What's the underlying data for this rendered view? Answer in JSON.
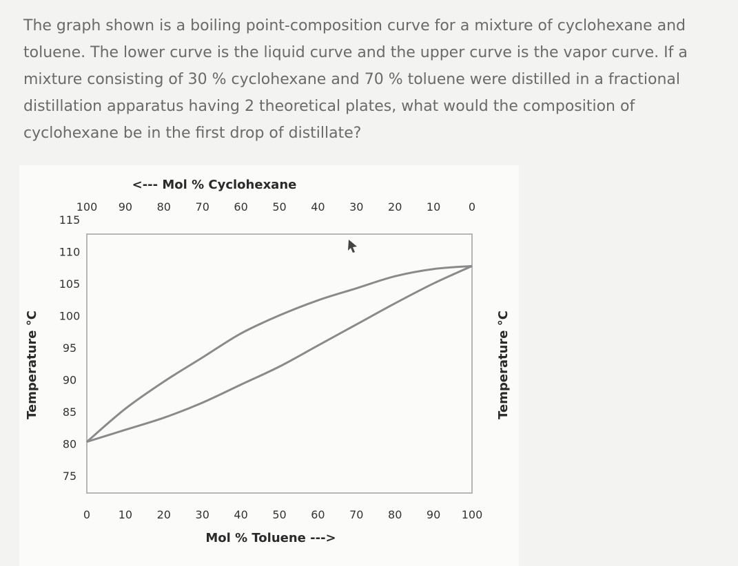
{
  "question": {
    "text": "The graph shown is a boiling point-composition curve for a mixture of cyclohexane and toluene. The lower curve is the liquid curve and the upper curve is the vapor curve. If a mixture consisting of 30 % cyclohexane and 70 % toluene were distilled in a fractional distillation apparatus having 2 theoretical plates, what would the composition of cyclohexane be in the first drop of distillate?"
  },
  "chart_data": {
    "type": "line",
    "top_xlabel": "<--- Mol % Cyclohexane",
    "xlabel": "Mol % Toluene --->",
    "ylabel_left": "Temperature °C",
    "ylabel_right": "Temperature °C",
    "top_ticks": [
      "100",
      "90",
      "80",
      "70",
      "60",
      "50",
      "40",
      "30",
      "20",
      "10",
      "0"
    ],
    "bottom_ticks": [
      "0",
      "10",
      "20",
      "30",
      "40",
      "50",
      "60",
      "70",
      "80",
      "90",
      "100"
    ],
    "y_ticks": [
      "115",
      "110",
      "105",
      "100",
      "95",
      "90",
      "85",
      "80",
      "75"
    ],
    "xlim": [
      0,
      100
    ],
    "ylim": [
      73,
      116
    ],
    "grid": false,
    "series": [
      {
        "name": "",
        "x": [
          0,
          10,
          20,
          30,
          40,
          50,
          60,
          70,
          80,
          90,
          100
        ],
        "y": [
          81.5,
          83.5,
          85.5,
          88.0,
          91.0,
          94.0,
          97.5,
          101.0,
          104.5,
          107.8,
          110.7
        ]
      },
      {
        "name": "",
        "x": [
          0,
          10,
          20,
          30,
          40,
          50,
          60,
          70,
          80,
          90,
          100
        ],
        "y": [
          81.5,
          87.0,
          91.5,
          95.5,
          99.5,
          102.5,
          105.0,
          107.0,
          109.0,
          110.2,
          110.7
        ]
      }
    ],
    "colors": {
      "curve": "#8a8a8a",
      "frame": "#b5b5b5"
    }
  }
}
